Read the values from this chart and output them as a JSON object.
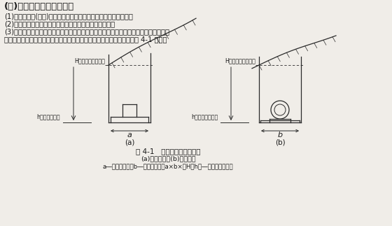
{
  "title": "(一)土石方工程量计算说明",
  "line1": "(1)填方以压实(崆实)后的体积计算，挖方以自然密实度体积计算。",
  "line2": "(2)挖一般土石方清单工程量按设计图示尺寸以体积计算。",
  "line3": "(3)挖沟槽和基坑土石方清单工程量按设计图示尺寸以基础垫层底面积乘以挖土石深度计",
  "line4": "算。其中挖土石深度为原地面平均标高至坑、槽底平均标高的深度，如图 4-1 所示。",
  "label_H_a": "H原地面线平均标高",
  "label_h_a": "h坑底平均标高",
  "label_H_b": "H原地面线平均标高",
  "label_h_b": "h沟槽底平均标高",
  "cap1": "图 4-1   挖沟槽和基坑土石方",
  "cap2": "(a)基坑挖方；(b)沟槽挖方",
  "cap3": "a―桥台垫层宽；b―桥台垫层长；a×b×（H－h）―管沟挖方工程量",
  "bg_color": "#f0ede8",
  "lc": "#2a2a2a",
  "tc": "#1a1a1a"
}
